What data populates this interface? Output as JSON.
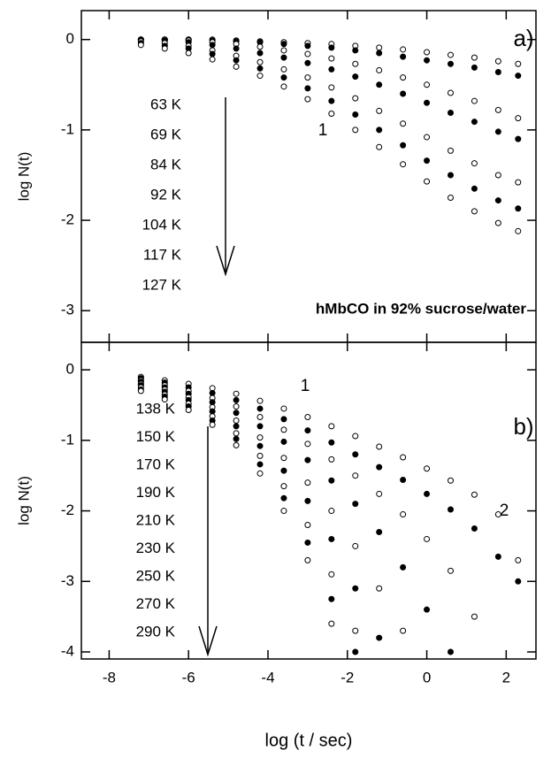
{
  "chart_data": [
    {
      "type": "scatter",
      "panel_label": "a)",
      "ylabel": "log N(t)",
      "annotations": [
        "1",
        "hMbCO in 92% sucrose/water"
      ],
      "x": [
        -7.2,
        -6.6,
        -6.0,
        -5.4,
        -4.8,
        -4.2,
        -3.6,
        -3.0,
        -2.4,
        -1.8,
        -1.2,
        -0.6,
        0,
        0.6,
        1.2,
        1.8,
        2.3
      ],
      "xlim": [
        -8.7,
        2.75
      ],
      "xticks": [
        -8,
        -6,
        -4,
        -2,
        0,
        2
      ],
      "ylim": [
        -3.35,
        0.32
      ],
      "yticks": [
        0,
        -1,
        -2,
        -3
      ],
      "series": [
        {
          "name": "63 K",
          "color": "#000000",
          "marker": "open",
          "values": [
            0,
            0,
            0,
            0,
            -0.01,
            -0.02,
            -0.03,
            -0.04,
            -0.05,
            -0.07,
            -0.09,
            -0.11,
            -0.14,
            -0.17,
            -0.2,
            -0.24,
            -0.27
          ]
        },
        {
          "name": "69 K",
          "color": "#000000",
          "marker": "filled",
          "values": [
            0,
            0,
            0,
            -0.01,
            -0.02,
            -0.03,
            -0.05,
            -0.07,
            -0.09,
            -0.12,
            -0.15,
            -0.19,
            -0.23,
            -0.27,
            -0.31,
            -0.36,
            -0.4
          ]
        },
        {
          "name": "84 K",
          "color": "#000000",
          "marker": "open",
          "values": [
            0,
            0,
            -0.01,
            -0.03,
            -0.05,
            -0.08,
            -0.12,
            -0.16,
            -0.21,
            -0.27,
            -0.34,
            -0.42,
            -0.5,
            -0.59,
            -0.68,
            -0.78,
            -0.87
          ]
        },
        {
          "name": "92 K",
          "color": "#000000",
          "marker": "filled",
          "values": [
            0,
            -0.01,
            -0.03,
            -0.06,
            -0.1,
            -0.15,
            -0.2,
            -0.26,
            -0.33,
            -0.41,
            -0.5,
            -0.6,
            -0.7,
            -0.81,
            -0.91,
            -1.02,
            -1.1
          ]
        },
        {
          "name": "104 K",
          "color": "#000000",
          "marker": "open",
          "values": [
            -0.02,
            -0.04,
            -0.07,
            -0.12,
            -0.18,
            -0.25,
            -0.33,
            -0.42,
            -0.53,
            -0.65,
            -0.79,
            -0.93,
            -1.08,
            -1.23,
            -1.37,
            -1.5,
            -1.58
          ]
        },
        {
          "name": "117 K",
          "color": "#000000",
          "marker": "filled",
          "values": [
            -0.04,
            -0.07,
            -0.1,
            -0.16,
            -0.23,
            -0.32,
            -0.42,
            -0.54,
            -0.68,
            -0.83,
            -1.0,
            -1.17,
            -1.34,
            -1.5,
            -1.65,
            -1.78,
            -1.87
          ]
        },
        {
          "name": "127 K",
          "color": "#000000",
          "marker": "open",
          "values": [
            -0.06,
            -0.1,
            -0.15,
            -0.22,
            -0.3,
            -0.4,
            -0.52,
            -0.66,
            -0.82,
            -1.0,
            -1.19,
            -1.38,
            -1.57,
            -1.75,
            -1.9,
            -2.03,
            -2.12
          ]
        }
      ]
    },
    {
      "type": "scatter",
      "panel_label": "b)",
      "ylabel": "log N(t)",
      "xlabel": "log (t / sec)",
      "annotations": [
        "1",
        "2"
      ],
      "x": [
        -7.2,
        -6.6,
        -6.0,
        -5.4,
        -4.8,
        -4.2,
        -3.6,
        -3.0,
        -2.4,
        -1.8,
        -1.2,
        -0.6,
        0,
        0.6,
        1.2,
        1.8,
        2.3
      ],
      "xlim": [
        -8.7,
        2.75
      ],
      "xticks": [
        -8,
        -6,
        -4,
        -2,
        0,
        2
      ],
      "ylim": [
        -4.1,
        0.39
      ],
      "yticks": [
        0,
        -1,
        -2,
        -3,
        -4
      ],
      "series": [
        {
          "name": "138 K",
          "color": "#000000",
          "marker": "open",
          "values": [
            -0.1,
            -0.15,
            -0.2,
            -0.26,
            -0.34,
            -0.44,
            -0.55,
            -0.67,
            -0.8,
            -0.94,
            -1.09,
            -1.24,
            -1.4,
            -1.57,
            -1.77,
            -2.05,
            -2.7
          ]
        },
        {
          "name": "150 K",
          "color": "#000000",
          "marker": "filled",
          "values": [
            -0.12,
            -0.18,
            -0.25,
            -0.33,
            -0.43,
            -0.55,
            -0.7,
            -0.86,
            -1.03,
            -1.2,
            -1.38,
            -1.56,
            -1.76,
            -1.98,
            -2.25,
            -2.65,
            -3.0
          ]
        },
        {
          "name": "170 K",
          "color": "#000000",
          "marker": "open",
          "values": [
            -0.15,
            -0.22,
            -0.3,
            -0.4,
            -0.52,
            -0.67,
            -0.85,
            -1.05,
            -1.27,
            -1.5,
            -1.76,
            -2.05,
            -2.4,
            -2.85,
            -3.5,
            null,
            null
          ]
        },
        {
          "name": "190 K",
          "color": "#000000",
          "marker": "filled",
          "values": [
            -0.17,
            -0.25,
            -0.34,
            -0.46,
            -0.61,
            -0.8,
            -1.02,
            -1.28,
            -1.57,
            -1.9,
            -2.3,
            -2.8,
            -3.4,
            -4.0,
            null,
            null,
            null
          ]
        },
        {
          "name": "210 K",
          "color": "#000000",
          "marker": "open",
          "values": [
            -0.2,
            -0.28,
            -0.39,
            -0.53,
            -0.72,
            -0.96,
            -1.25,
            -1.6,
            -2.0,
            -2.5,
            -3.1,
            -3.7,
            null,
            null,
            null,
            null,
            null
          ]
        },
        {
          "name": "230 K",
          "color": "#000000",
          "marker": "filled",
          "values": [
            -0.22,
            -0.31,
            -0.43,
            -0.59,
            -0.8,
            -1.08,
            -1.43,
            -1.86,
            -2.4,
            -3.1,
            -3.8,
            null,
            null,
            null,
            null,
            null,
            null
          ]
        },
        {
          "name": "250 K",
          "color": "#000000",
          "marker": "open",
          "values": [
            -0.25,
            -0.35,
            -0.48,
            -0.66,
            -0.9,
            -1.22,
            -1.65,
            -2.2,
            -2.9,
            -3.7,
            null,
            null,
            null,
            null,
            null,
            null,
            null
          ]
        },
        {
          "name": "270 K",
          "color": "#000000",
          "marker": "filled",
          "values": [
            -0.28,
            -0.38,
            -0.52,
            -0.72,
            -0.98,
            -1.34,
            -1.82,
            -2.45,
            -3.25,
            -4.0,
            null,
            null,
            null,
            null,
            null,
            null,
            null
          ]
        },
        {
          "name": "290 K",
          "color": "#000000",
          "marker": "open",
          "values": [
            -0.3,
            -0.42,
            -0.57,
            -0.78,
            -1.07,
            -1.47,
            -2.0,
            -2.7,
            -3.6,
            null,
            null,
            null,
            null,
            null,
            null,
            null,
            null
          ]
        }
      ]
    }
  ]
}
